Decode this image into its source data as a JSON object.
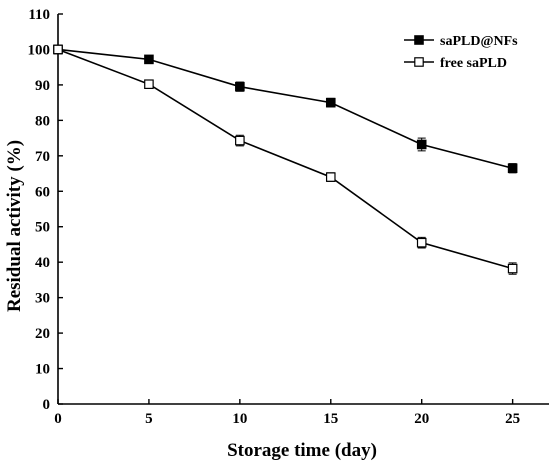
{
  "chart_data": {
    "type": "line",
    "xlabel": "Storage time (day)",
    "ylabel": "Residual activity (%)",
    "xlim": [
      0,
      27
    ],
    "ylim": [
      0,
      110
    ],
    "x_ticks": [
      0,
      5,
      10,
      15,
      20,
      25
    ],
    "y_ticks": [
      0,
      10,
      20,
      30,
      40,
      50,
      60,
      70,
      80,
      90,
      100,
      110
    ],
    "x": [
      0,
      5,
      10,
      15,
      20,
      25
    ],
    "grid": false,
    "legend_position": "top-right",
    "series": [
      {
        "name": "saPLD@NFs",
        "marker": "filled-square",
        "values": [
          100,
          97.2,
          89.5,
          85.0,
          73.2,
          66.5
        ],
        "errors": [
          1.2,
          1.0,
          1.3,
          1.2,
          1.8,
          1.3
        ]
      },
      {
        "name": "free saPLD",
        "marker": "open-square",
        "values": [
          100,
          90.2,
          74.3,
          64.0,
          45.5,
          38.2
        ],
        "errors": [
          1.2,
          0.8,
          1.5,
          1.2,
          1.5,
          1.6
        ]
      }
    ]
  }
}
